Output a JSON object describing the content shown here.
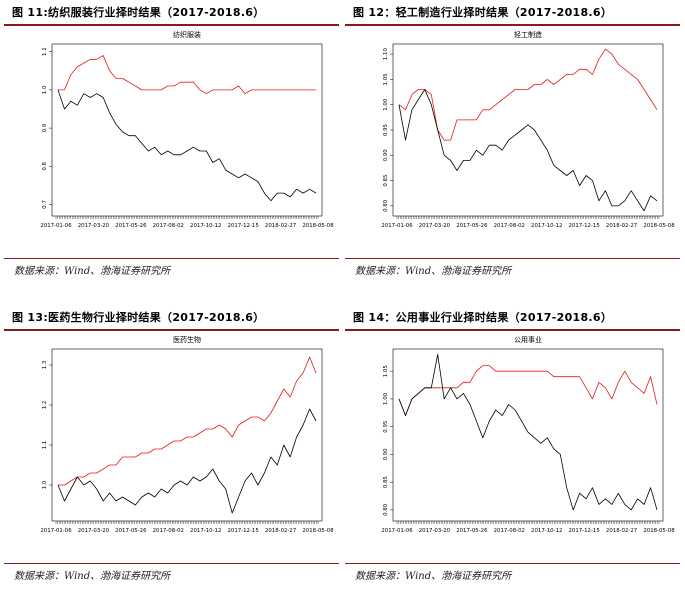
{
  "source_text": "数据来源：Wind、渤海证券研究所",
  "x_ticks": [
    "2017-01-06",
    "2017-03-20",
    "2017-05-26",
    "2017-08-02",
    "2017-10-12",
    "2017-12-15",
    "2018-02-27",
    "2018-05-08"
  ],
  "colors": {
    "strategy": "#e41a1c",
    "index": "#000000",
    "rule": "#8b1a1a"
  },
  "chart_data": [
    {
      "type": "line",
      "figure_label": "图 11:纺织服装行业择时结果（2017-2018.6）",
      "title": "纺织服装",
      "x_ticks": [
        "2017-01-06",
        "2017-03-20",
        "2017-05-26",
        "2017-08-02",
        "2017-10-12",
        "2017-12-15",
        "2018-02-27",
        "2018-05-08"
      ],
      "y_ticks": [
        "0.7",
        "0.8",
        "0.9",
        "1.0",
        "1.1"
      ],
      "ylim": [
        0.67,
        1.12
      ],
      "grid": false,
      "series": [
        {
          "color": "#e41a1c",
          "values": [
            1.0,
            1.0,
            1.04,
            1.06,
            1.07,
            1.08,
            1.08,
            1.09,
            1.05,
            1.03,
            1.03,
            1.02,
            1.01,
            1.0,
            1.0,
            1.0,
            1.0,
            1.01,
            1.01,
            1.02,
            1.02,
            1.02,
            1.0,
            0.99,
            1.0,
            1.0,
            1.0,
            1.0,
            1.01,
            0.99,
            1.0,
            1.0,
            1.0,
            1.0,
            1.0,
            1.0,
            1.0,
            1.0,
            1.0,
            1.0,
            1.0
          ]
        },
        {
          "color": "#000000",
          "values": [
            1.0,
            0.95,
            0.97,
            0.96,
            0.99,
            0.98,
            0.99,
            0.98,
            0.94,
            0.91,
            0.89,
            0.88,
            0.88,
            0.86,
            0.84,
            0.85,
            0.83,
            0.84,
            0.83,
            0.83,
            0.84,
            0.85,
            0.84,
            0.84,
            0.81,
            0.82,
            0.79,
            0.78,
            0.77,
            0.78,
            0.77,
            0.76,
            0.73,
            0.71,
            0.73,
            0.73,
            0.72,
            0.74,
            0.73,
            0.74,
            0.73
          ]
        }
      ]
    },
    {
      "type": "line",
      "figure_label": "图 12：轻工制造行业择时结果（2017-2018.6）",
      "title": "轻工制造",
      "x_ticks": [
        "2017-01-06",
        "2017-03-20",
        "2017-05-26",
        "2017-08-02",
        "2017-10-12",
        "2017-12-15",
        "2018-02-27",
        "2018-05-08"
      ],
      "y_ticks": [
        "0.80",
        "0.85",
        "0.90",
        "0.95",
        "1.00",
        "1.05",
        "1.10"
      ],
      "ylim": [
        0.78,
        1.12
      ],
      "grid": false,
      "series": [
        {
          "color": "#e41a1c",
          "values": [
            1.0,
            0.99,
            1.02,
            1.03,
            1.03,
            1.02,
            0.95,
            0.93,
            0.93,
            0.97,
            0.97,
            0.97,
            0.97,
            0.99,
            0.99,
            1.0,
            1.01,
            1.02,
            1.03,
            1.03,
            1.03,
            1.04,
            1.04,
            1.05,
            1.04,
            1.05,
            1.06,
            1.06,
            1.07,
            1.07,
            1.06,
            1.09,
            1.11,
            1.1,
            1.08,
            1.07,
            1.06,
            1.05,
            1.03,
            1.01,
            0.99
          ]
        },
        {
          "color": "#000000",
          "values": [
            1.0,
            0.93,
            0.99,
            1.01,
            1.03,
            1.0,
            0.95,
            0.9,
            0.89,
            0.87,
            0.89,
            0.89,
            0.91,
            0.9,
            0.92,
            0.92,
            0.91,
            0.93,
            0.94,
            0.95,
            0.96,
            0.95,
            0.93,
            0.91,
            0.88,
            0.87,
            0.86,
            0.87,
            0.84,
            0.86,
            0.85,
            0.81,
            0.83,
            0.8,
            0.8,
            0.81,
            0.83,
            0.81,
            0.79,
            0.82,
            0.81
          ]
        }
      ]
    },
    {
      "type": "line",
      "figure_label": "图 13:医药生物行业择时结果（2017-2018.6）",
      "title": "医药生物",
      "x_ticks": [
        "2017-01-06",
        "2017-03-20",
        "2017-05-26",
        "2017-08-02",
        "2017-10-12",
        "2017-12-15",
        "2018-02-27",
        "2018-05-08"
      ],
      "y_ticks": [
        "1.0",
        "1.1",
        "1.2",
        "1.3"
      ],
      "ylim": [
        0.91,
        1.34
      ],
      "grid": false,
      "series": [
        {
          "color": "#e41a1c",
          "values": [
            1.0,
            1.0,
            1.01,
            1.02,
            1.02,
            1.03,
            1.03,
            1.04,
            1.05,
            1.05,
            1.07,
            1.07,
            1.07,
            1.08,
            1.08,
            1.09,
            1.09,
            1.1,
            1.11,
            1.11,
            1.12,
            1.12,
            1.13,
            1.14,
            1.14,
            1.15,
            1.14,
            1.12,
            1.15,
            1.16,
            1.17,
            1.17,
            1.16,
            1.18,
            1.21,
            1.24,
            1.22,
            1.26,
            1.28,
            1.32,
            1.28
          ]
        },
        {
          "color": "#000000",
          "values": [
            1.0,
            0.96,
            0.99,
            1.02,
            1.0,
            1.01,
            0.99,
            0.96,
            0.98,
            0.96,
            0.97,
            0.96,
            0.95,
            0.97,
            0.98,
            0.97,
            0.99,
            0.98,
            1.0,
            1.01,
            1.0,
            1.02,
            1.01,
            1.02,
            1.04,
            1.01,
            0.99,
            0.93,
            0.97,
            1.01,
            1.03,
            1.0,
            1.03,
            1.07,
            1.05,
            1.1,
            1.07,
            1.12,
            1.15,
            1.19,
            1.16
          ]
        }
      ]
    },
    {
      "type": "line",
      "figure_label": "图 14：公用事业行业择时结果（2017-2018.6）",
      "title": "公用事业",
      "x_ticks": [
        "2017-01-06",
        "2017-03-20",
        "2017-05-26",
        "2017-08-02",
        "2017-10-12",
        "2017-12-15",
        "2018-02-27",
        "2018-05-08"
      ],
      "y_ticks": [
        "0.80",
        "0.85",
        "0.90",
        "0.95",
        "1.00",
        "1.05"
      ],
      "ylim": [
        0.78,
        1.09
      ],
      "grid": false,
      "series": [
        {
          "color": "#e41a1c",
          "values": [
            1.0,
            0.97,
            1.0,
            1.01,
            1.02,
            1.02,
            1.02,
            1.02,
            1.02,
            1.02,
            1.03,
            1.03,
            1.05,
            1.06,
            1.06,
            1.05,
            1.05,
            1.05,
            1.05,
            1.05,
            1.05,
            1.05,
            1.05,
            1.05,
            1.04,
            1.04,
            1.04,
            1.04,
            1.04,
            1.02,
            1.0,
            1.03,
            1.02,
            1.0,
            1.03,
            1.05,
            1.03,
            1.02,
            1.01,
            1.04,
            0.99
          ]
        },
        {
          "color": "#000000",
          "values": [
            1.0,
            0.97,
            1.0,
            1.01,
            1.02,
            1.02,
            1.08,
            1.0,
            1.02,
            1.0,
            1.01,
            0.99,
            0.96,
            0.93,
            0.96,
            0.98,
            0.97,
            0.99,
            0.98,
            0.96,
            0.94,
            0.93,
            0.92,
            0.93,
            0.91,
            0.9,
            0.84,
            0.8,
            0.83,
            0.82,
            0.84,
            0.81,
            0.82,
            0.81,
            0.83,
            0.81,
            0.8,
            0.82,
            0.81,
            0.84,
            0.8
          ]
        }
      ]
    }
  ]
}
